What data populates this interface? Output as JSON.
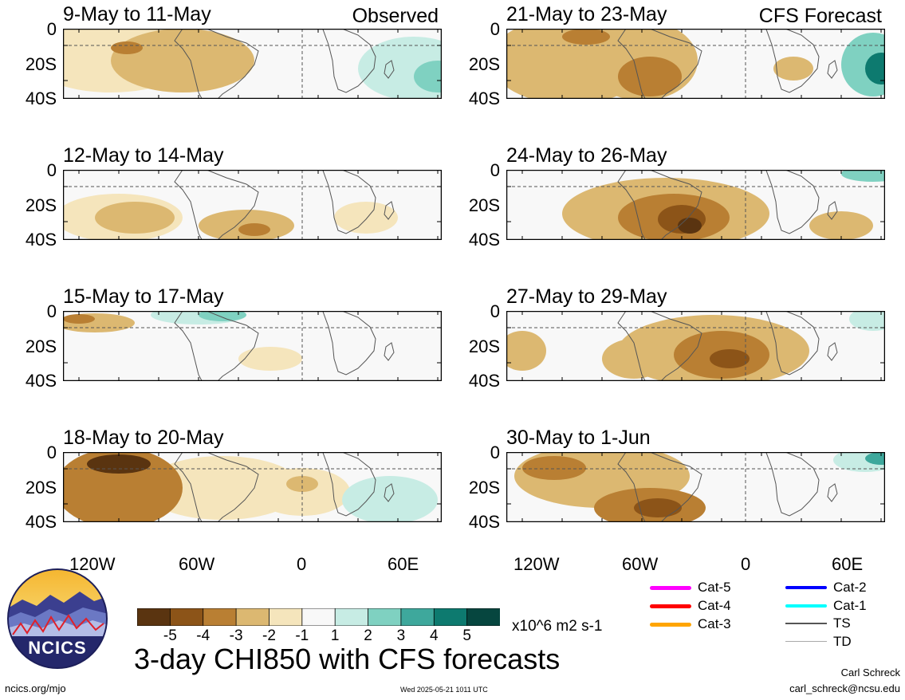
{
  "chart_data": {
    "type": "heatmap",
    "title": "3-day CHI850 with CFS forecasts",
    "units": "x10^6 m2 s-1",
    "colorbar": {
      "tick_labels": [
        "-5",
        "-4",
        "-3",
        "-2",
        "-1",
        "1",
        "2",
        "3",
        "4",
        "5"
      ],
      "colors": [
        "#5a3410",
        "#8c5418",
        "#b97f33",
        "#dcb871",
        "#f5e5bc",
        "#f8f8f8",
        "#c7ece4",
        "#7fd1c1",
        "#3ea89c",
        "#0d7a6f",
        "#06463f"
      ]
    },
    "lat_ticks": [
      "0",
      "20S",
      "40S"
    ],
    "lon_ticks": [
      "120W",
      "60W",
      "0",
      "60E"
    ],
    "left_column_label": "Observed",
    "right_column_label": "CFS Forecast",
    "panels": [
      {
        "label": "9-May to 11-May",
        "column": "left",
        "source": "Observed"
      },
      {
        "label": "12-May to 14-May",
        "column": "left",
        "source": "Observed"
      },
      {
        "label": "15-May to 17-May",
        "column": "left",
        "source": "Observed"
      },
      {
        "label": "18-May to 20-May",
        "column": "left",
        "source": "Observed"
      },
      {
        "label": "21-May to 23-May",
        "column": "right",
        "source": "CFS Forecast"
      },
      {
        "label": "24-May to 26-May",
        "column": "right",
        "source": "CFS Forecast"
      },
      {
        "label": "27-May to 29-May",
        "column": "right",
        "source": "CFS Forecast"
      },
      {
        "label": "30-May to 1-Jun",
        "column": "right",
        "source": "CFS Forecast"
      }
    ]
  },
  "legend": {
    "items": [
      {
        "label": "Cat-5",
        "color": "#ff00ff"
      },
      {
        "label": "Cat-4",
        "color": "#ff0000"
      },
      {
        "label": "Cat-3",
        "color": "#ffa500"
      },
      {
        "label": "Cat-2",
        "color": "#0000ff"
      },
      {
        "label": "Cat-1",
        "color": "#00ffff"
      },
      {
        "label": "TS",
        "color": "#555555"
      },
      {
        "label": "TD",
        "color": "#aaaaaa"
      }
    ]
  },
  "logo_text": "NCICS",
  "footer": {
    "site": "ncics.org/mjo",
    "timestamp": "Wed 2025-05-21 1011 UTC",
    "author": "Carl Schreck",
    "email": "carl_schreck@ncsu.edu"
  }
}
